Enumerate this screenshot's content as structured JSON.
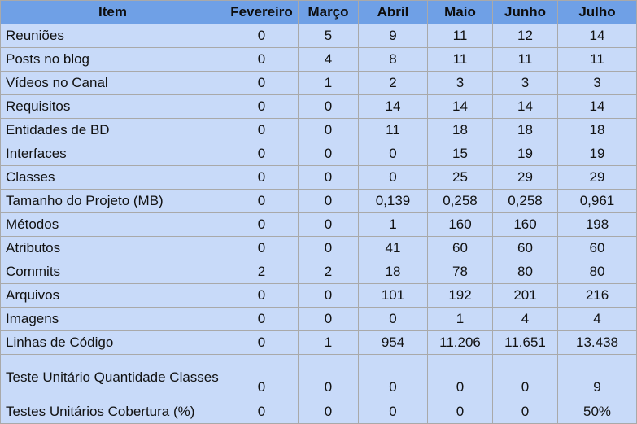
{
  "table": {
    "headers": [
      "Item",
      "Fevereiro",
      "Março",
      "Abril",
      "Maio",
      "Junho",
      "Julho"
    ],
    "rows": [
      {
        "item": "Reuniões",
        "values": [
          "0",
          "5",
          "9",
          "11",
          "12",
          "14"
        ]
      },
      {
        "item": "Posts no blog",
        "values": [
          "0",
          "4",
          "8",
          "11",
          "11",
          "11"
        ]
      },
      {
        "item": "Vídeos no Canal",
        "values": [
          "0",
          "1",
          "2",
          "3",
          "3",
          "3"
        ]
      },
      {
        "item": "Requisitos",
        "values": [
          "0",
          "0",
          "14",
          "14",
          "14",
          "14"
        ]
      },
      {
        "item": "Entidades de BD",
        "values": [
          "0",
          "0",
          "11",
          "18",
          "18",
          "18"
        ]
      },
      {
        "item": "Interfaces",
        "values": [
          "0",
          "0",
          "0",
          "15",
          "19",
          "19"
        ]
      },
      {
        "item": "Classes",
        "values": [
          "0",
          "0",
          "0",
          "25",
          "29",
          "29"
        ]
      },
      {
        "item": "Tamanho do Projeto (MB)",
        "values": [
          "0",
          "0",
          "0,139",
          "0,258",
          "0,258",
          "0,961"
        ]
      },
      {
        "item": "Métodos",
        "values": [
          "0",
          "0",
          "1",
          "160",
          "160",
          "198"
        ]
      },
      {
        "item": "Atributos",
        "values": [
          "0",
          "0",
          "41",
          "60",
          "60",
          "60"
        ]
      },
      {
        "item": "Commits",
        "values": [
          "2",
          "2",
          "18",
          "78",
          "80",
          "80"
        ]
      },
      {
        "item": "Arquivos",
        "values": [
          "0",
          "0",
          "101",
          "192",
          "201",
          "216"
        ]
      },
      {
        "item": "Imagens",
        "values": [
          "0",
          "0",
          "0",
          "1",
          "4",
          "4"
        ]
      },
      {
        "item": "Linhas de Código",
        "values": [
          "0",
          "1",
          "954",
          "11.206",
          "11.651",
          "13.438"
        ]
      },
      {
        "item": "Teste Unitário Quantidade Classes",
        "values": [
          "0",
          "0",
          "0",
          "0",
          "0",
          "9"
        ]
      },
      {
        "item": "Testes Unitários Cobertura (%)",
        "values": [
          "0",
          "0",
          "0",
          "0",
          "0",
          "50%"
        ]
      }
    ]
  },
  "colors": {
    "header_background": "#6fa0e6",
    "cell_background": "#c8daf9",
    "grid_line": "#a9a9a9"
  }
}
